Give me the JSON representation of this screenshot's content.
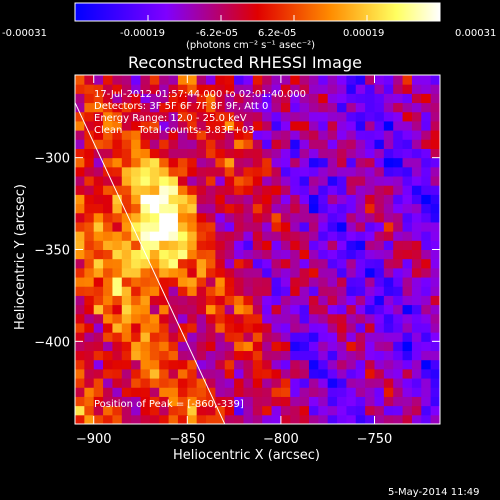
{
  "chart_data": {
    "type": "heatmap",
    "title": "Reconstructed RHESSI Image",
    "xlabel": "Heliocentric X (arcsec)",
    "ylabel": "Heliocentric Y (arcsec)",
    "xlim": [
      -910,
      -715
    ],
    "ylim": [
      -445,
      -255
    ],
    "x_ticks": [
      -900,
      -850,
      -800,
      -750
    ],
    "y_ticks": [
      -300,
      -350,
      -400
    ],
    "x_tick_labels": [
      "−900",
      "−850",
      "−800",
      "−750"
    ],
    "y_tick_labels": [
      "−300",
      "−350",
      "−400"
    ],
    "colorbar": {
      "range": [
        -0.00031,
        0.00031
      ],
      "tick_labels": [
        "-0.00031",
        "-0.00019",
        "-6.2e-05",
        "6.2e-05",
        "0.00019",
        "0.00031"
      ],
      "unit_label": "(photons cm⁻² s⁻¹ asec⁻²)",
      "colors": [
        "#0000ff",
        "#7f00ff",
        "#e00000",
        "#ff8c00",
        "#ffff60",
        "#ffffff"
      ]
    },
    "annotations": [
      "17-Jul-2012 01:57:44.000 to 02:01:40.000",
      "Detectors: 3F 5F 6F 7F 8F 9F, Att 0",
      "Energy Range: 12.0 - 25.0 keV",
      "Clean     Total counts: 3.83E+03"
    ],
    "peak_label": "Position of Peak = [-860,-339]",
    "peak": [
      -860,
      -339
    ],
    "limb_line": [
      [
        -910,
        -270
      ],
      [
        -830,
        -445
      ]
    ],
    "bright_region_center": [
      -868,
      -337
    ],
    "footer": "5-May-2014 11:49"
  }
}
